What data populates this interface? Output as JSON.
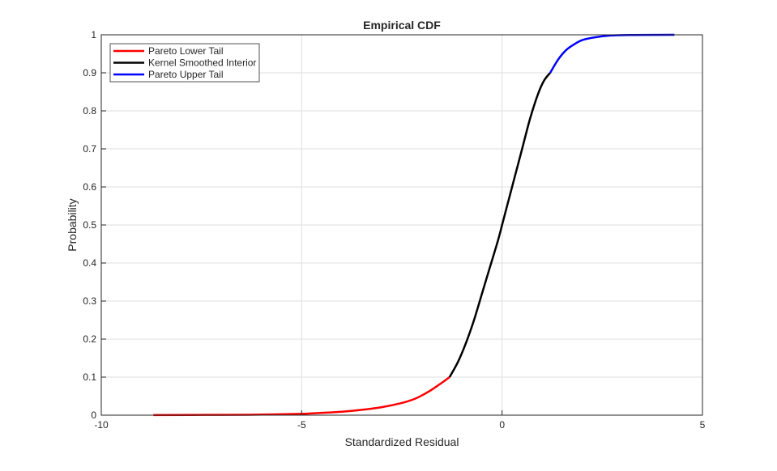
{
  "chart_data": {
    "type": "line",
    "title": "Empirical CDF",
    "xlabel": "Standardized Residual",
    "ylabel": "Probability",
    "xlim": [
      -10,
      5
    ],
    "ylim": [
      0,
      1
    ],
    "grid": true,
    "xticks": [
      -10,
      -5,
      0,
      5
    ],
    "xtick_labels": [
      "-10",
      "-5",
      "0",
      "5"
    ],
    "yticks": [
      0,
      0.1,
      0.2,
      0.3,
      0.4,
      0.5,
      0.6,
      0.7,
      0.8,
      0.9,
      1
    ],
    "ytick_labels": [
      "0",
      "0.1",
      "0.2",
      "0.3",
      "0.4",
      "0.5",
      "0.6",
      "0.7",
      "0.8",
      "0.9",
      "1"
    ],
    "legend_position": "top-left",
    "series": [
      {
        "name": "Pareto Lower Tail",
        "color": "#ff0000",
        "x": [
          -8.7,
          -7,
          -6,
          -5,
          -4.5,
          -4,
          -3.5,
          -3,
          -2.5,
          -2.2,
          -2,
          -1.8,
          -1.6,
          -1.45,
          -1.31
        ],
        "y": [
          0.0003,
          0.0008,
          0.0015,
          0.0035,
          0.006,
          0.009,
          0.014,
          0.021,
          0.032,
          0.042,
          0.052,
          0.064,
          0.078,
          0.089,
          0.1
        ]
      },
      {
        "name": "Kernel Smoothed Interior",
        "color": "#000000",
        "x": [
          -1.31,
          -1.1,
          -0.9,
          -0.7,
          -0.5,
          -0.3,
          -0.1,
          0,
          0.1,
          0.3,
          0.5,
          0.7,
          0.9,
          1.05,
          1.2
        ],
        "y": [
          0.1,
          0.14,
          0.19,
          0.25,
          0.32,
          0.39,
          0.46,
          0.5,
          0.54,
          0.62,
          0.7,
          0.78,
          0.845,
          0.88,
          0.9
        ]
      },
      {
        "name": "Pareto Upper Tail",
        "color": "#0000ff",
        "x": [
          1.2,
          1.4,
          1.6,
          1.8,
          2.0,
          2.3,
          2.7,
          3.2,
          4.3
        ],
        "y": [
          0.9,
          0.935,
          0.96,
          0.975,
          0.986,
          0.993,
          0.998,
          0.9995,
          1
        ]
      }
    ]
  }
}
